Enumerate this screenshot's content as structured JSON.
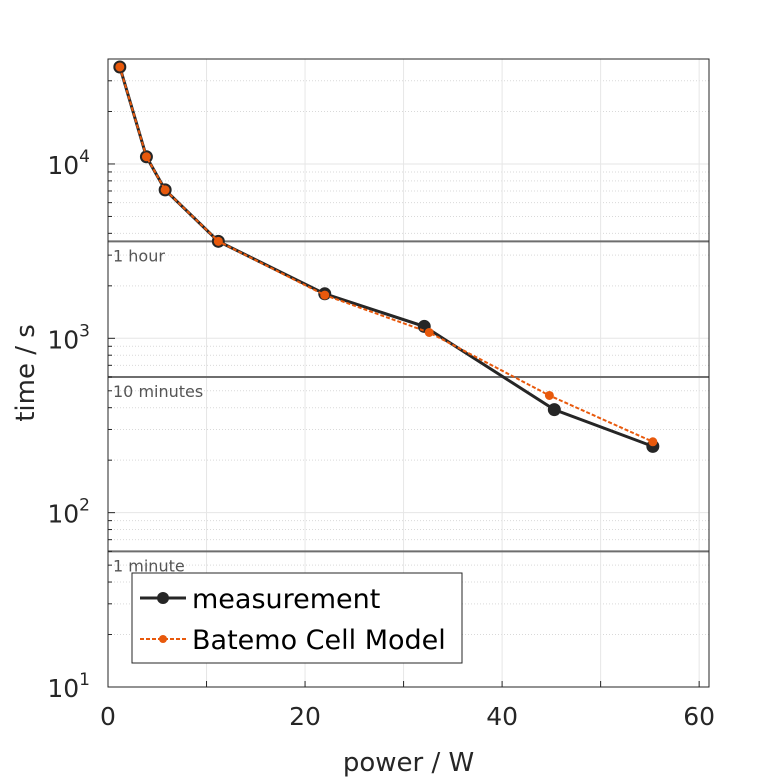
{
  "chart_data": {
    "type": "line",
    "xlabel": "power / W",
    "ylabel": "time / s",
    "xlim": [
      0,
      61
    ],
    "ylim": [
      10,
      40000
    ],
    "yscale": "log",
    "xticks": [
      0,
      20,
      40,
      60
    ],
    "yticks": [
      {
        "value": 10,
        "base": "10",
        "exp": "1"
      },
      {
        "value": 100,
        "base": "10",
        "exp": "2"
      },
      {
        "value": 1000,
        "base": "10",
        "exp": "3"
      },
      {
        "value": 10000,
        "base": "10",
        "exp": "4"
      }
    ],
    "grid": true,
    "legend_position": "bottom-left",
    "reference_lines": [
      {
        "label": "1 hour",
        "y": 3600
      },
      {
        "label": "10 minutes",
        "y": 600
      },
      {
        "label": "1 minute",
        "y": 60
      }
    ],
    "series": [
      {
        "name": "measurement",
        "color": "#262626",
        "style": "solid",
        "marker_size": "large",
        "x": [
          1.2,
          3.9,
          5.8,
          11.2,
          22.0,
          32.1,
          45.3,
          55.3
        ],
        "y": [
          36000,
          11000,
          7100,
          3600,
          1800,
          1170,
          390,
          240
        ]
      },
      {
        "name": "Batemo Cell Model",
        "color": "#E8590C",
        "style": "dashed",
        "marker_size": "small",
        "x": [
          1.2,
          3.9,
          5.8,
          11.2,
          22.0,
          32.6,
          44.8,
          55.3
        ],
        "y": [
          36000,
          11000,
          7100,
          3600,
          1770,
          1080,
          470,
          255
        ]
      }
    ]
  }
}
